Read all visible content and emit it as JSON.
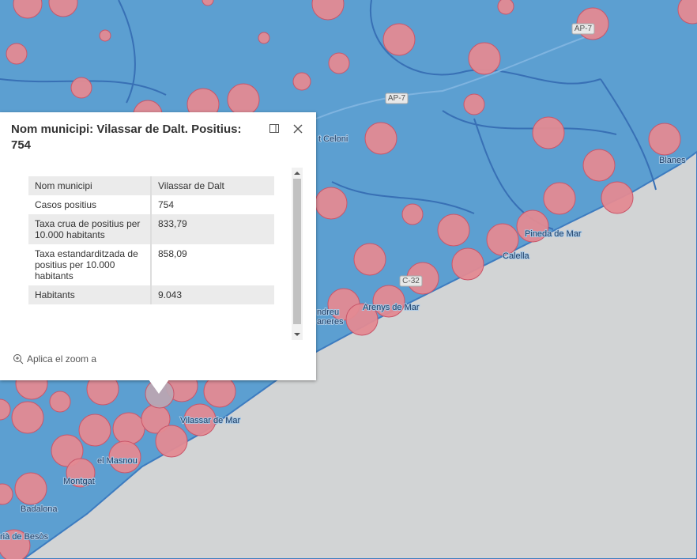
{
  "popup": {
    "title": "Nom municipi: Vilassar de Dalt. Positius: 754",
    "rows": [
      [
        "Nom municipi",
        "Vilassar de Dalt"
      ],
      [
        "Casos positius",
        "754"
      ],
      [
        "Taxa crua de positius per 10.000 habitants",
        "833,79"
      ],
      [
        "Taxa estandarditzada de positius per 10.000 habitants",
        "858,09"
      ],
      [
        "Habitants",
        "9.043"
      ]
    ],
    "zoom": "Aplica el zoom a"
  },
  "map": {
    "roads": [
      "AP-7",
      "AP-7",
      "C-32"
    ],
    "places": [
      "t Celoni",
      "Blanes",
      "Pineda de Mar",
      "Calella",
      "Arenys de Mar",
      "ndreu",
      "aneres",
      "Vilassar de Mar",
      "el Masnou",
      "Montgat",
      "Badalona",
      "rià de Besòs"
    ]
  }
}
